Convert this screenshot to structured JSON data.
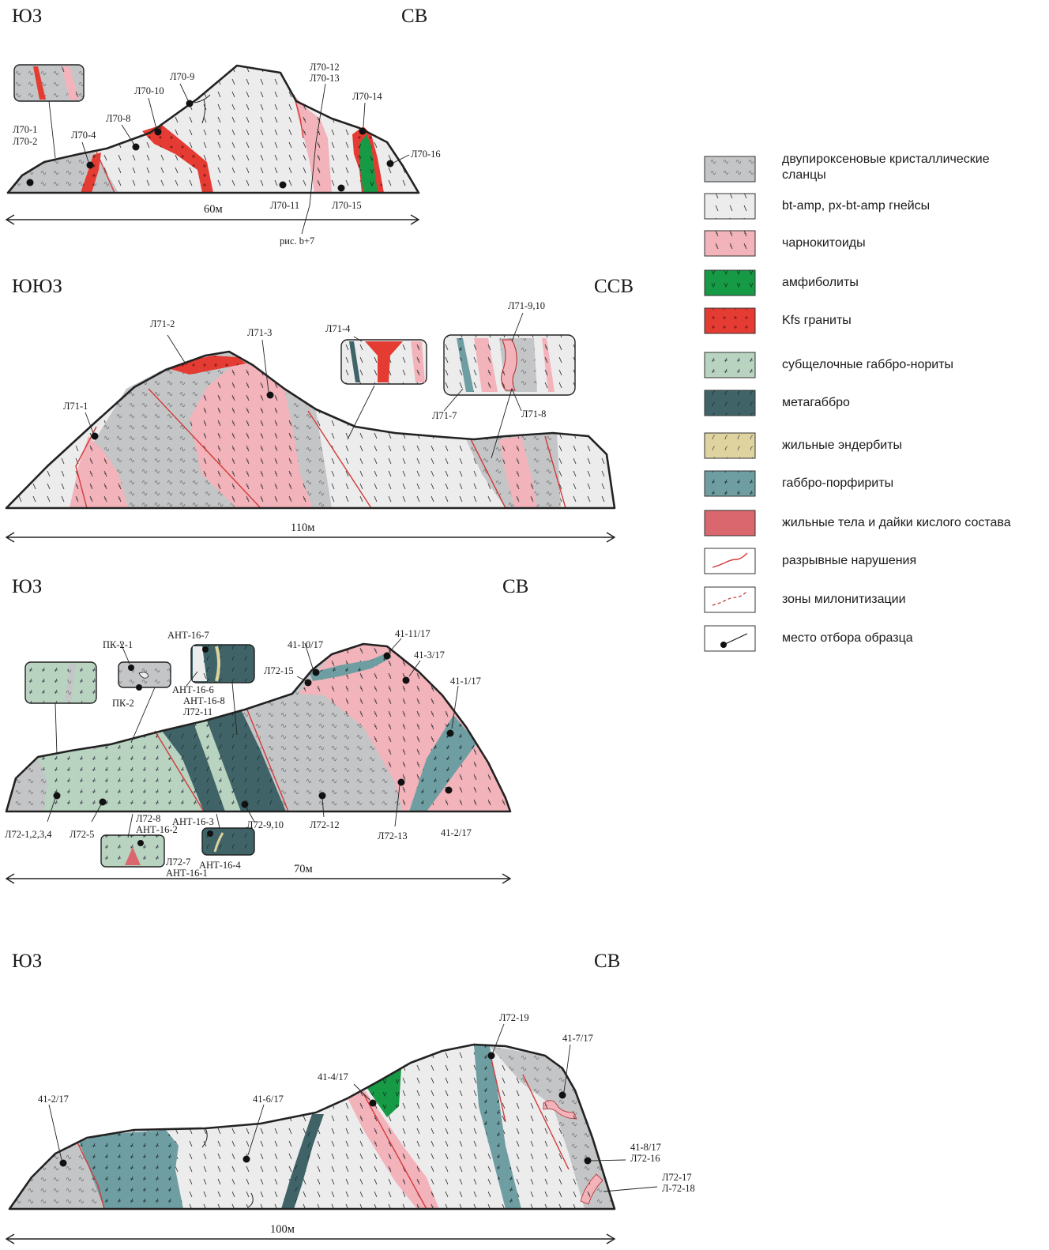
{
  "colors": {
    "schist": "#c4c5c7",
    "gneiss": "#ececed",
    "charno": "#f3b3ba",
    "amphibolite": "#179a45",
    "kfs_granite": "#e43b33",
    "gabbro_norite": "#b8d3c0",
    "metagabbro": "#3f6367",
    "endrb": "#dfd39f",
    "porphyrite": "#6f9ea2",
    "dikes": "#d9676d"
  },
  "sections": [
    {
      "left_dir": "ЮЗ",
      "right_dir": "СВ",
      "scale": "60м",
      "labels": [
        "Л70-1",
        "Л70-2",
        "Л70-4",
        "Л70-8",
        "Л70-9",
        "Л70-10",
        "Л70-11",
        "Л70-12",
        "Л70-13",
        "Л70-14",
        "Л70-15",
        "Л70-16",
        "рис. b+7"
      ]
    },
    {
      "left_dir": "ЮЮЗ",
      "right_dir": "ССВ",
      "scale": "110м",
      "labels": [
        "Л71-1",
        "Л71-2",
        "Л71-3",
        "Л71-4",
        "Л71-9,10",
        "Л71-7",
        "Л71-8"
      ]
    },
    {
      "left_dir": "ЮЗ",
      "right_dir": "СВ",
      "scale": "70м",
      "labels": [
        "АНТ-16-7",
        "ПК-2-1",
        "ПК-2",
        "41-10/17",
        "41-11/17",
        "41-3/17",
        "Л72-15",
        "41-1/17",
        "АНТ-16-6",
        "АНТ-16-8",
        "Л72-11",
        "Л72-1,2,3,4",
        "Л72-5",
        "Л72-8",
        "АНТ-16-2",
        "АНТ-16-3",
        "Л72-9,10",
        "Л72-12",
        "Л72-13",
        "41-2/17",
        "Л72-7",
        "АНТ-16-1",
        "АНТ-16-4"
      ]
    },
    {
      "left_dir": "ЮЗ",
      "right_dir": "СВ",
      "scale": "100м",
      "labels": [
        "Л72-19",
        "41-7/17",
        "41-4/17",
        "41-2/17",
        "41-6/17",
        "41-8/17",
        "Л72-16",
        "Л72-17",
        "Л-72-18"
      ]
    }
  ],
  "legend": [
    {
      "swatch": "schist",
      "line1": "двупироксеновые  кристаллические",
      "line2": "сланцы"
    },
    {
      "swatch": "gneiss",
      "line1": "bt-amp, px-bt-amp гнейсы"
    },
    {
      "swatch": "charno",
      "line1": "чарнокитоиды"
    },
    {
      "swatch": "amphibolite",
      "line1": "амфиболиты"
    },
    {
      "swatch": "kfs_granite",
      "line1": "Kfs граниты"
    },
    {
      "swatch": "gabbro_norite",
      "line1": "субщелочные габбро-нориты"
    },
    {
      "swatch": "metagabbro",
      "line1": "метагаббро"
    },
    {
      "swatch": "endrb",
      "line1": "жильные эндербиты"
    },
    {
      "swatch": "porphyrite",
      "line1": "габбро-порфириты"
    },
    {
      "swatch": "dikes",
      "line1": "жильные тела и дайки кислого состава"
    },
    {
      "swatch": "fault",
      "line1": "разрывные нарушения"
    },
    {
      "swatch": "mylonite",
      "line1": "зоны милонитизации"
    },
    {
      "swatch": "sample",
      "line1": "место отбора образца"
    }
  ]
}
